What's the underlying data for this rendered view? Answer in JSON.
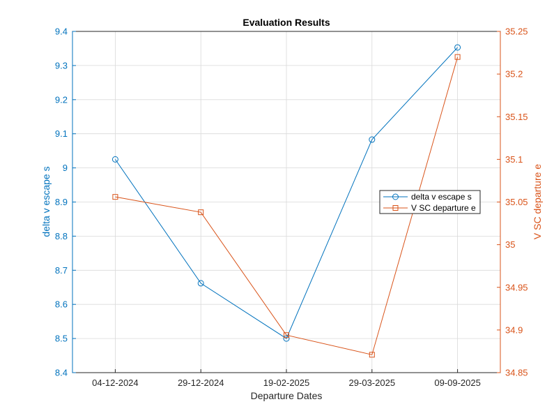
{
  "chart_data": {
    "type": "line",
    "title": "Evaluation Results",
    "xlabel": "Departure Dates",
    "categories": [
      "04-12-2024",
      "29-12-2024",
      "19-02-2025",
      "29-03-2025",
      "09-09-2025"
    ],
    "y_left": {
      "label": "delta v escape s",
      "lim": [
        8.4,
        9.4
      ],
      "ticks": [
        "8.4",
        "8.5",
        "8.6",
        "8.7",
        "8.8",
        "8.9",
        "9",
        "9.1",
        "9.2",
        "9.3",
        "9.4"
      ],
      "color": "#0072BD"
    },
    "y_right": {
      "label": "V SC departure e",
      "lim": [
        34.85,
        35.25
      ],
      "ticks": [
        "34.85",
        "34.9",
        "34.95",
        "35",
        "35.05",
        "35.1",
        "35.15",
        "35.2",
        "35.25"
      ],
      "color": "#D95319"
    },
    "series": [
      {
        "name": "delta v escape s",
        "axis": "left",
        "marker": "circle",
        "color": "#0072BD",
        "values": [
          9.025,
          8.662,
          8.5,
          9.083,
          9.353
        ]
      },
      {
        "name": "V SC departure e",
        "axis": "right",
        "marker": "square",
        "color": "#D95319",
        "values": [
          35.056,
          35.038,
          34.894,
          34.871,
          35.22
        ]
      }
    ],
    "grid": true,
    "legend_position": "right"
  }
}
